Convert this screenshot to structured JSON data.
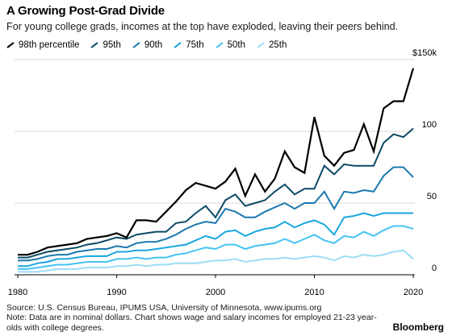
{
  "title": "A Growing Post-Grad Divide",
  "subtitle": "For young college grads, incomes at the top have exploded, leaving their peers behind.",
  "source": "Source: U.S. Census Bureau, IPUMS USA, University of Minnesota, www.ipums.org",
  "note": "Note: Data are in nominal dollars. Chart shows wage and salary incomes for employed 21-23 year-olds with college degrees.",
  "brand": "Bloomberg",
  "chart_data": {
    "type": "line",
    "title": "A Growing Post-Grad Divide",
    "xlabel": "",
    "ylabel": "",
    "xlim": [
      1980,
      2020
    ],
    "ylim": [
      0,
      150
    ],
    "x_ticks": [
      1980,
      1990,
      2000,
      2010,
      2020
    ],
    "y_ticks": [
      0,
      50,
      100,
      150
    ],
    "y_tick_labels": [
      "0",
      "50",
      "100",
      "$150k"
    ],
    "grid": "horizontal",
    "legend_position": "top-left",
    "x": [
      1980,
      1981,
      1982,
      1983,
      1984,
      1985,
      1986,
      1987,
      1988,
      1989,
      1990,
      1991,
      1992,
      1993,
      1994,
      1995,
      1996,
      1997,
      1998,
      1999,
      2000,
      2001,
      2002,
      2003,
      2004,
      2005,
      2006,
      2007,
      2008,
      2009,
      2010,
      2011,
      2012,
      2013,
      2014,
      2015,
      2016,
      2017,
      2018,
      2019,
      2020
    ],
    "series": [
      {
        "name": "98th percentile",
        "color": "#000000",
        "values": [
          14,
          14,
          16,
          19,
          20,
          21,
          22,
          25,
          26,
          27,
          29,
          26,
          38,
          38,
          37,
          44,
          51,
          59,
          64,
          62,
          60,
          65,
          74,
          55,
          70,
          58,
          67,
          86,
          75,
          71,
          110,
          83,
          76,
          85,
          87,
          105,
          86,
          116,
          121,
          121,
          144
        ]
      },
      {
        "name": "95th",
        "color": "#0d4a66",
        "values": [
          12,
          12,
          14,
          16,
          17,
          18,
          19,
          21,
          22,
          24,
          26,
          25,
          28,
          29,
          30,
          30,
          36,
          37,
          43,
          48,
          40,
          52,
          56,
          48,
          50,
          52,
          58,
          63,
          56,
          60,
          60,
          76,
          70,
          77,
          76,
          76,
          76,
          92,
          98,
          96,
          102
        ]
      },
      {
        "name": "90th",
        "color": "#1c79b0",
        "values": [
          10,
          10,
          11,
          13,
          14,
          14,
          16,
          17,
          18,
          18,
          20,
          19,
          22,
          23,
          23,
          25,
          28,
          32,
          35,
          37,
          36,
          46,
          44,
          40,
          40,
          44,
          47,
          50,
          46,
          50,
          50,
          58,
          46,
          58,
          57,
          59,
          58,
          69,
          75,
          75,
          68
        ]
      },
      {
        "name": "75th",
        "color": "#1aa6e0",
        "values": [
          6,
          6,
          8,
          9,
          11,
          11,
          12,
          13,
          13,
          13,
          16,
          16,
          17,
          17,
          18,
          19,
          20,
          21,
          24,
          27,
          25,
          30,
          31,
          27,
          30,
          32,
          33,
          37,
          33,
          36,
          38,
          35,
          28,
          40,
          41,
          43,
          41,
          43,
          43,
          43,
          43
        ]
      },
      {
        "name": "50th",
        "color": "#44c3f2",
        "values": [
          4,
          4,
          5,
          6,
          7,
          7,
          8,
          9,
          9,
          9,
          11,
          11,
          12,
          11,
          12,
          12,
          14,
          15,
          17,
          19,
          18,
          21,
          21,
          18,
          20,
          21,
          22,
          25,
          22,
          25,
          28,
          24,
          22,
          27,
          26,
          30,
          27,
          31,
          34,
          34,
          32
        ]
      },
      {
        "name": "25th",
        "color": "#9cdcf7",
        "values": [
          2,
          2,
          2,
          3,
          4,
          4,
          4,
          5,
          5,
          5,
          6,
          6,
          7,
          6,
          7,
          7,
          8,
          8,
          8,
          9,
          10,
          10,
          11,
          9,
          10,
          11,
          11,
          12,
          11,
          12,
          13,
          12,
          10,
          13,
          12,
          14,
          13,
          14,
          16,
          17,
          11
        ]
      }
    ]
  }
}
